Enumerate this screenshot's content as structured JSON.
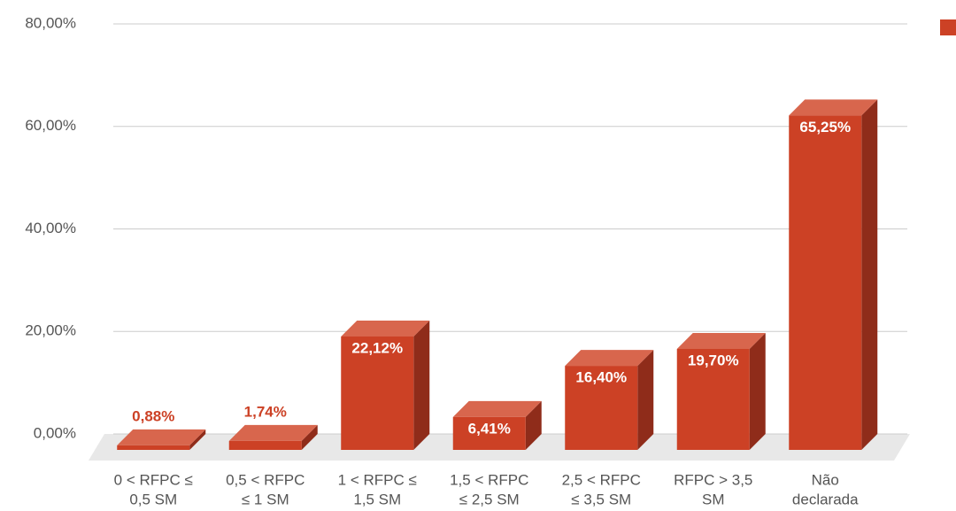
{
  "chart_data": {
    "type": "bar3d",
    "categories": [
      [
        "0 < RFPC ≤",
        "0,5 SM"
      ],
      [
        "0,5 < RFPC",
        "≤ 1 SM"
      ],
      [
        "1 < RFPC ≤",
        "1,5 SM"
      ],
      [
        "1,5 < RFPC",
        "≤ 2,5 SM"
      ],
      [
        "2,5 < RFPC",
        "≤ 3,5 SM"
      ],
      [
        "RFPC > 3,5",
        "SM"
      ],
      [
        "Não",
        "declarada"
      ]
    ],
    "values": [
      0.88,
      1.74,
      22.12,
      6.41,
      16.4,
      19.7,
      65.25
    ],
    "value_labels": [
      "0,88%",
      "1,74%",
      "22,12%",
      "6,41%",
      "16,40%",
      "19,70%",
      "65,25%"
    ],
    "color": "#cc4125",
    "ylim": [
      0,
      80
    ],
    "yticks": [
      {
        "value": 0,
        "label": "0,00%"
      },
      {
        "value": 20,
        "label": "20,00%"
      },
      {
        "value": 40,
        "label": "40,00%"
      },
      {
        "value": 60,
        "label": "60,00%"
      },
      {
        "value": 80,
        "label": "80,00%"
      }
    ],
    "grid": true
  }
}
